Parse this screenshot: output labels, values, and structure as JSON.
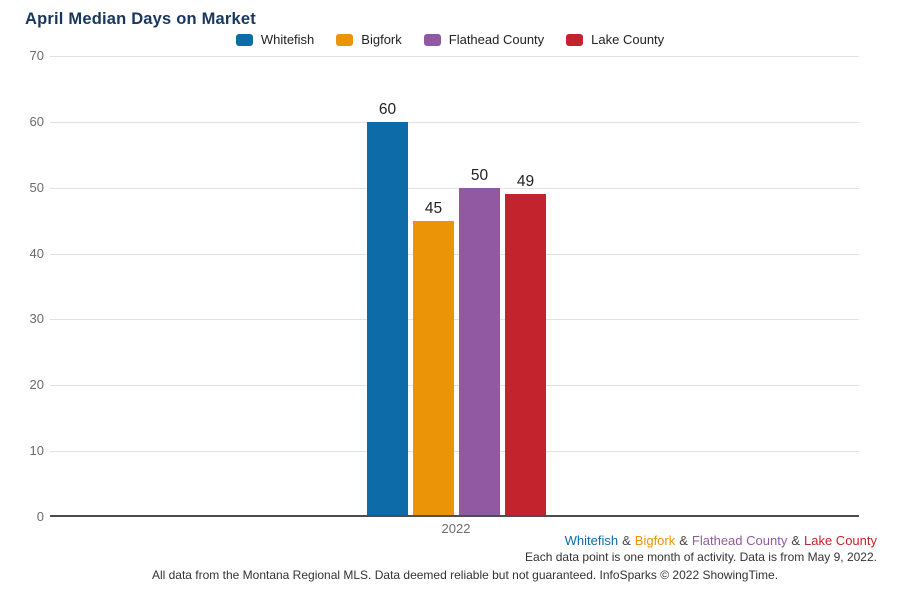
{
  "title": "April Median Days on Market",
  "chart_data": {
    "type": "bar",
    "title": "April Median Days on Market",
    "categories": [
      "2022"
    ],
    "series": [
      {
        "name": "Whitefish",
        "color": "#0d6ba8",
        "values": [
          60
        ]
      },
      {
        "name": "Bigfork",
        "color": "#ec9408",
        "values": [
          45
        ]
      },
      {
        "name": "Flathead County",
        "color": "#9259a3",
        "values": [
          50
        ]
      },
      {
        "name": "Lake County",
        "color": "#c2232d",
        "values": [
          49
        ]
      }
    ],
    "xlabel": "",
    "ylabel": "",
    "ylim": [
      0,
      70
    ],
    "yticks": [
      70,
      60,
      50,
      40,
      30,
      20,
      10,
      0
    ],
    "grid": true,
    "legend_position": "top-center",
    "data_labels": true
  },
  "colors": {
    "title": "#17375e",
    "grid": "#e2e2e2",
    "baseline": "#4d4d4d",
    "tick_label": "#6b6b6b",
    "value_label": "#222222"
  },
  "footer": {
    "separator": "&",
    "note": "Each data point is one month of activity. Data is from May 9, 2022.",
    "disclaimer": "All data from the Montana Regional MLS. Data deemed reliable but not guaranteed. InfoSparks © 2022 ShowingTime."
  }
}
